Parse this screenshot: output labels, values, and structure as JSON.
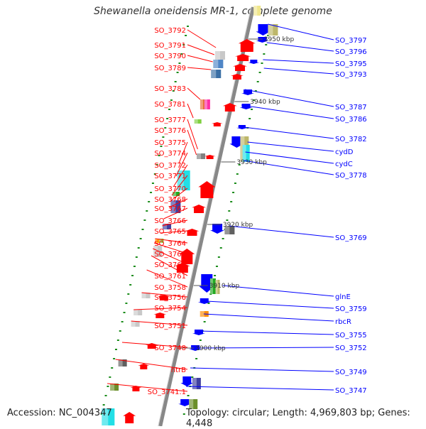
{
  "title": "Shewanella oneidensis MR-1, complete genome",
  "footer": {
    "accession": "Accession: NC_004347",
    "topology": "Topology: circular; Length: 4,969,803 bp; Genes: 4,448"
  },
  "colors": {
    "forward": "#ff0000",
    "reverse": "#0000ff",
    "backbone": "#888888"
  },
  "kbp_marks": [
    "3950 kbp",
    "3940 kbp",
    "3930 kbp",
    "3920 kbp",
    "3910 kbp",
    "3900 kbp"
  ],
  "left_genes": [
    "SO_3792",
    "SO_3791",
    "SO_3790",
    "SO_3789",
    "SO_3783",
    "SO_3781",
    "SO_3777",
    "SO_3776",
    "SO_3775",
    "SO_3774",
    "SO_3772",
    "SO_3771",
    "SO_3770",
    "SO_3768",
    "SO_3767",
    "SO_3766",
    "SO_3765",
    "SO_3764",
    "SO_3763",
    "SO_3762",
    "SO_3761",
    "SO_3758",
    "SO_3756",
    "SO_3754",
    "SO_3751",
    "SO_3748",
    "htrB",
    "SO_3741.1"
  ],
  "right_genes": [
    "SO_3797",
    "SO_3796",
    "SO_3795",
    "SO_3793",
    "SO_3787",
    "SO_3786",
    "SO_3782",
    "cydD",
    "cydC",
    "SO_3778",
    "SO_3769",
    "glnE",
    "SO_3759",
    "rbcR",
    "SO_3755",
    "SO_3752",
    "SO_3749",
    "SO_3747"
  ],
  "legend_icons": [
    "forward-arrow-icon",
    "reverse-arrow-icon"
  ]
}
